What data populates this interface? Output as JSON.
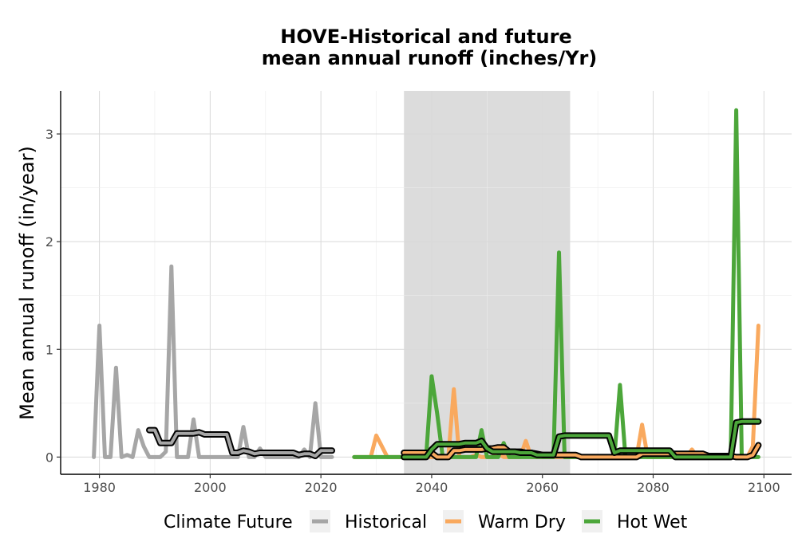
{
  "chart_data": {
    "type": "line",
    "title_line1": "HOVE-Historical and future",
    "title_line2": "mean annual runoff (inches/Yr)",
    "xlabel": "",
    "ylabel": "Mean annual runoff (in/year)",
    "xlim": [
      1973,
      2105
    ],
    "ylim": [
      -0.16,
      3.4
    ],
    "xticks": [
      1980,
      2000,
      2020,
      2040,
      2060,
      2080,
      2100
    ],
    "yticks": [
      0,
      1,
      2,
      3
    ],
    "grid": true,
    "shaded_period": [
      2035,
      2065
    ],
    "legend": {
      "title": "Climate Future",
      "position": "bottom",
      "items": [
        "Historical",
        "Warm Dry",
        "Hot Wet"
      ]
    },
    "colors": {
      "Historical": "#a6a6a6",
      "Warm Dry": "#f9a95e",
      "Hot Wet": "#4ca63a",
      "rolling_mean_outline": "#000000",
      "shade": "#dcdcdc"
    },
    "series": [
      {
        "name": "Historical",
        "x": [
          1979,
          1980,
          1981,
          1982,
          1983,
          1984,
          1985,
          1986,
          1987,
          1988,
          1989,
          1990,
          1991,
          1992,
          1993,
          1994,
          1995,
          1996,
          1997,
          1998,
          1999,
          2000,
          2001,
          2002,
          2003,
          2004,
          2005,
          2006,
          2007,
          2008,
          2009,
          2010,
          2011,
          2012,
          2013,
          2014,
          2015,
          2016,
          2017,
          2018,
          2019,
          2020,
          2021,
          2022
        ],
        "values": [
          0,
          1.22,
          0,
          0,
          0.83,
          0,
          0.02,
          0,
          0.25,
          0.1,
          0,
          0,
          0,
          0.05,
          1.77,
          0,
          0,
          0,
          0.35,
          0,
          0,
          0,
          0,
          0,
          0,
          0,
          0,
          0.28,
          0,
          0,
          0.08,
          0,
          0,
          0,
          0,
          0,
          0,
          0,
          0.07,
          0,
          0.5,
          0,
          0,
          0
        ]
      },
      {
        "name": "Warm Dry",
        "x": [
          2026,
          2027,
          2028,
          2029,
          2030,
          2031,
          2032,
          2033,
          2034,
          2035,
          2036,
          2037,
          2038,
          2039,
          2040,
          2041,
          2042,
          2043,
          2044,
          2045,
          2046,
          2047,
          2048,
          2049,
          2050,
          2051,
          2052,
          2053,
          2054,
          2055,
          2056,
          2057,
          2058,
          2059,
          2060,
          2061,
          2062,
          2063,
          2064,
          2065,
          2066,
          2067,
          2068,
          2069,
          2070,
          2071,
          2072,
          2073,
          2074,
          2075,
          2076,
          2077,
          2078,
          2079,
          2080,
          2081,
          2082,
          2083,
          2084,
          2085,
          2086,
          2087,
          2088,
          2089,
          2090,
          2091,
          2092,
          2093,
          2094,
          2095,
          2096,
          2097,
          2098,
          2099
        ],
        "values": [
          0,
          0,
          0,
          0,
          0.2,
          0.1,
          0,
          0,
          0,
          0,
          0,
          0,
          0,
          0,
          0,
          0,
          0,
          0,
          0.63,
          0,
          0,
          0,
          0.02,
          0,
          0,
          0,
          0.03,
          0,
          0,
          0,
          0,
          0.15,
          0,
          0,
          0,
          0,
          0,
          0,
          0,
          0,
          0,
          0,
          0,
          0,
          0,
          0,
          0,
          0,
          0,
          0,
          0,
          0,
          0.3,
          0,
          0,
          0,
          0,
          0,
          0,
          0,
          0,
          0.07,
          0,
          0,
          0,
          0,
          0,
          0,
          0,
          0,
          0,
          0,
          0.1,
          1.22
        ]
      },
      {
        "name": "Hot Wet",
        "x": [
          2026,
          2027,
          2028,
          2029,
          2030,
          2031,
          2032,
          2033,
          2034,
          2035,
          2036,
          2037,
          2038,
          2039,
          2040,
          2041,
          2042,
          2043,
          2044,
          2045,
          2046,
          2047,
          2048,
          2049,
          2050,
          2051,
          2052,
          2053,
          2054,
          2055,
          2056,
          2057,
          2058,
          2059,
          2060,
          2061,
          2062,
          2063,
          2064,
          2065,
          2066,
          2067,
          2068,
          2069,
          2070,
          2071,
          2072,
          2073,
          2074,
          2075,
          2076,
          2077,
          2078,
          2079,
          2080,
          2081,
          2082,
          2083,
          2084,
          2085,
          2086,
          2087,
          2088,
          2089,
          2090,
          2091,
          2092,
          2093,
          2094,
          2095,
          2096,
          2097,
          2098,
          2099
        ],
        "values": [
          0,
          0,
          0,
          0,
          0,
          0,
          0,
          0,
          0,
          0,
          0,
          0,
          0,
          0,
          0.75,
          0.4,
          0,
          0,
          0,
          0,
          0,
          0,
          0,
          0.25,
          0,
          0,
          0,
          0.13,
          0,
          0,
          0,
          0,
          0,
          0,
          0,
          0,
          0,
          1.9,
          0,
          0,
          0,
          0,
          0,
          0,
          0,
          0,
          0,
          0,
          0.67,
          0,
          0,
          0,
          0,
          0,
          0,
          0,
          0,
          0,
          0,
          0,
          0,
          0,
          0,
          0,
          0,
          0,
          0,
          0,
          0,
          3.22,
          0,
          0,
          0,
          0
        ]
      }
    ],
    "rolling_means": [
      {
        "series": "Historical",
        "x": [
          1989,
          1990,
          1991,
          1992,
          1993,
          1994,
          1995,
          1996,
          1997,
          1998,
          1999,
          2000,
          2001,
          2002,
          2003,
          2004,
          2005,
          2006,
          2007,
          2008,
          2009,
          2010,
          2011,
          2012,
          2013,
          2014,
          2015,
          2016,
          2017,
          2018,
          2019,
          2020,
          2021,
          2022
        ],
        "values": [
          0.25,
          0.25,
          0.13,
          0.13,
          0.13,
          0.22,
          0.22,
          0.22,
          0.22,
          0.23,
          0.21,
          0.21,
          0.21,
          0.21,
          0.21,
          0.04,
          0.04,
          0.06,
          0.05,
          0.03,
          0.04,
          0.04,
          0.04,
          0.04,
          0.04,
          0.04,
          0.04,
          0.02,
          0.03,
          0.03,
          0.01,
          0.06,
          0.06,
          0.06
        ]
      },
      {
        "series": "Warm Dry",
        "x": [
          2035,
          2036,
          2037,
          2038,
          2039,
          2040,
          2041,
          2042,
          2043,
          2044,
          2045,
          2046,
          2047,
          2048,
          2049,
          2050,
          2051,
          2052,
          2053,
          2054,
          2055,
          2056,
          2057,
          2058,
          2059,
          2060,
          2061,
          2062,
          2063,
          2064,
          2065,
          2066,
          2067,
          2068,
          2069,
          2070,
          2071,
          2072,
          2073,
          2074,
          2075,
          2076,
          2077,
          2078,
          2079,
          2080,
          2081,
          2082,
          2083,
          2084,
          2085,
          2086,
          2087,
          2088,
          2089,
          2090,
          2091,
          2092,
          2093,
          2094,
          2095,
          2096,
          2097,
          2098,
          2099
        ],
        "values": [
          0.04,
          0.04,
          0.04,
          0.04,
          0.04,
          0.04,
          0,
          0,
          0,
          0.06,
          0.06,
          0.07,
          0.07,
          0.07,
          0.07,
          0.08,
          0.08,
          0.09,
          0.09,
          0.05,
          0.05,
          0.05,
          0.04,
          0.04,
          0.03,
          0.02,
          0.02,
          0.02,
          0.02,
          0.02,
          0.02,
          0.02,
          0,
          0,
          0,
          0,
          0,
          0,
          0,
          0,
          0,
          0,
          0,
          0.03,
          0.03,
          0.03,
          0.03,
          0.03,
          0.03,
          0.03,
          0.03,
          0.03,
          0.03,
          0.03,
          0.03,
          0.01,
          0.01,
          0.01,
          0.01,
          0.01,
          0,
          0,
          0,
          0.02,
          0.11
        ]
      },
      {
        "series": "Hot Wet",
        "x": [
          2035,
          2036,
          2037,
          2038,
          2039,
          2040,
          2041,
          2042,
          2043,
          2044,
          2045,
          2046,
          2047,
          2048,
          2049,
          2050,
          2051,
          2052,
          2053,
          2054,
          2055,
          2056,
          2057,
          2058,
          2059,
          2060,
          2061,
          2062,
          2063,
          2064,
          2065,
          2066,
          2067,
          2068,
          2069,
          2070,
          2071,
          2072,
          2073,
          2074,
          2075,
          2076,
          2077,
          2078,
          2079,
          2080,
          2081,
          2082,
          2083,
          2084,
          2085,
          2086,
          2087,
          2088,
          2089,
          2090,
          2091,
          2092,
          2093,
          2094,
          2095,
          2096,
          2097,
          2098,
          2099
        ],
        "values": [
          0,
          0,
          0,
          0,
          0,
          0.07,
          0.12,
          0.12,
          0.12,
          0.12,
          0.12,
          0.13,
          0.13,
          0.13,
          0.15,
          0.08,
          0.05,
          0.05,
          0.05,
          0.05,
          0.05,
          0.04,
          0.04,
          0.04,
          0.02,
          0.02,
          0.02,
          0.02,
          0.19,
          0.2,
          0.2,
          0.2,
          0.2,
          0.2,
          0.2,
          0.2,
          0.2,
          0.2,
          0.04,
          0.06,
          0.06,
          0.06,
          0.06,
          0.06,
          0.06,
          0.06,
          0.06,
          0.06,
          0.06,
          0,
          0,
          0,
          0,
          0,
          0,
          0,
          0,
          0,
          0,
          0,
          0.32,
          0.33,
          0.33,
          0.33,
          0.33
        ]
      }
    ]
  }
}
